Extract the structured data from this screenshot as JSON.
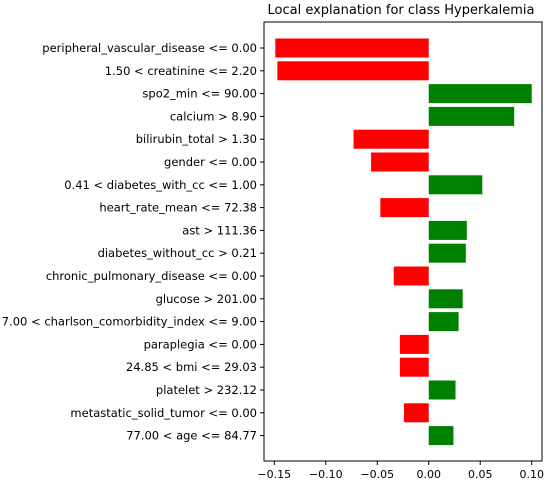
{
  "chart_data": {
    "type": "bar",
    "orientation": "horizontal",
    "title": "Local explanation for class Hyperkalemia",
    "xlabel": "",
    "ylabel": "",
    "xlim": [
      -0.16,
      0.11
    ],
    "xticks": [
      -0.15,
      -0.1,
      -0.05,
      0.0,
      0.05,
      0.1
    ],
    "xtick_labels": [
      "−0.15",
      "−0.10",
      "−0.05",
      "0.00",
      "0.05",
      "0.10"
    ],
    "grid": false,
    "colors": {
      "positive": "#008000",
      "negative": "#ff0000"
    },
    "categories": [
      "peripheral_vascular_disease <= 0.00",
      "1.50 < creatinine <= 2.20",
      "spo2_min <= 90.00",
      "calcium > 8.90",
      "bilirubin_total > 1.30",
      "gender <= 0.00",
      "0.41 < diabetes_with_cc <= 1.00",
      "heart_rate_mean <= 72.38",
      "ast > 111.36",
      "diabetes_without_cc > 0.21",
      "chronic_pulmonary_disease <= 0.00",
      "glucose > 201.00",
      "7.00 < charlson_comorbidity_index <= 9.00",
      "paraplegia <= 0.00",
      "24.85 < bmi <= 29.03",
      "platelet > 232.12",
      "metastatic_solid_tumor <= 0.00",
      "77.00 < age <= 84.77"
    ],
    "values": [
      -0.149,
      -0.147,
      0.1,
      0.083,
      -0.073,
      -0.056,
      0.052,
      -0.047,
      0.037,
      0.036,
      -0.034,
      0.033,
      0.029,
      -0.028,
      -0.028,
      0.026,
      -0.024,
      0.024
    ]
  }
}
